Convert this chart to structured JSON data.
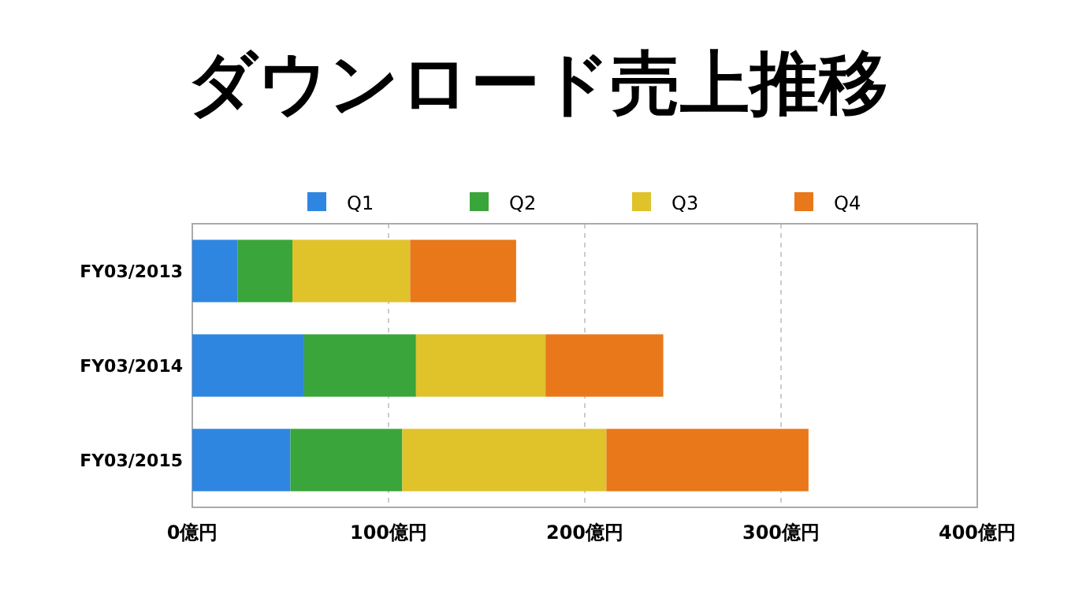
{
  "chart_data": {
    "type": "bar",
    "orientation": "horizontal",
    "stacked": true,
    "title": "ダウンロード売上推移",
    "categories": [
      "FY03/2013",
      "FY03/2014",
      "FY03/2015"
    ],
    "series": [
      {
        "name": "Q1",
        "color": "#2f86e0",
        "values": [
          23,
          57,
          50
        ]
      },
      {
        "name": "Q2",
        "color": "#3aa53a",
        "values": [
          28,
          57,
          57
        ]
      },
      {
        "name": "Q3",
        "color": "#e0c22a",
        "values": [
          60,
          66,
          104
        ]
      },
      {
        "name": "Q4",
        "color": "#e8781a",
        "values": [
          54,
          60,
          103
        ]
      }
    ],
    "xlim": [
      0,
      400
    ],
    "xticks": [
      {
        "value": 0,
        "label": "0億円"
      },
      {
        "value": 100,
        "label": "100億円"
      },
      {
        "value": 200,
        "label": "200億円"
      },
      {
        "value": 300,
        "label": "300億円"
      },
      {
        "value": 400,
        "label": "400億円"
      }
    ],
    "grid": "x",
    "legend": "top"
  }
}
